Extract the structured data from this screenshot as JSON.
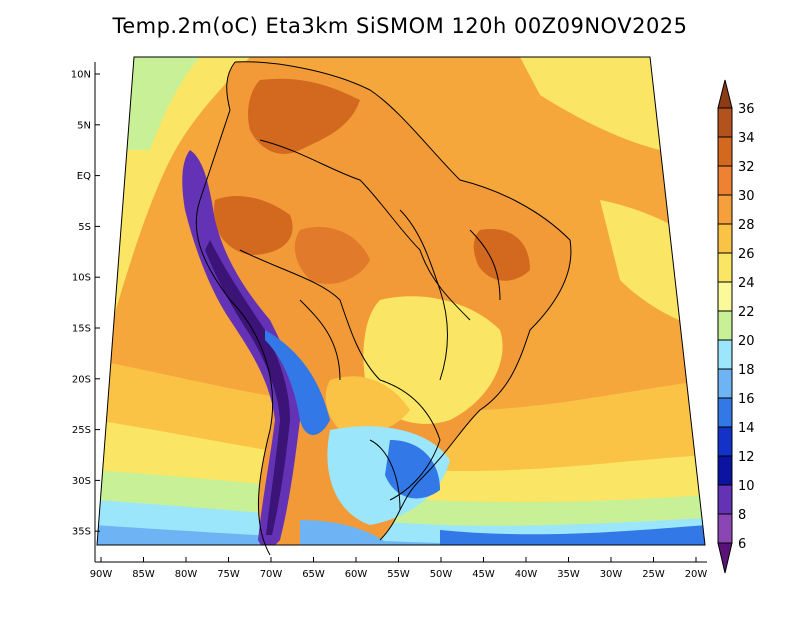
{
  "title": "Temp.2m(oC) Eta3km SiSMOM 120h 00Z09NOV2025",
  "map": {
    "lat_labels": [
      "10N",
      "5N",
      "EQ",
      "5S",
      "10S",
      "15S",
      "20S",
      "25S",
      "30S",
      "35S"
    ],
    "lon_labels": [
      "90W",
      "85W",
      "80W",
      "75W",
      "70W",
      "65W",
      "60W",
      "55W",
      "50W",
      "45W",
      "40W",
      "35W",
      "30W",
      "25W",
      "20W"
    ],
    "lat_range": [
      12,
      -38
    ],
    "lon_range": [
      -91,
      -19.5
    ],
    "projection_shape": "trapezoid-lambert",
    "background_sea_temp": "26-28"
  },
  "colorbar": {
    "labels": [
      "36",
      "34",
      "32",
      "30",
      "28",
      "26",
      "24",
      "22",
      "20",
      "18",
      "16",
      "14",
      "12",
      "10",
      "8",
      "6"
    ],
    "colors": [
      "#8c3c14",
      "#b4521e",
      "#d2691e",
      "#ee8232",
      "#f5a03c",
      "#fac346",
      "#fae664",
      "#fafa9b",
      "#c8f096",
      "#9be6fa",
      "#6eb4f5",
      "#3278e6",
      "#1432c8",
      "#0a14a0",
      "#6432b4",
      "#8c46b4",
      "#5a1478"
    ]
  }
}
